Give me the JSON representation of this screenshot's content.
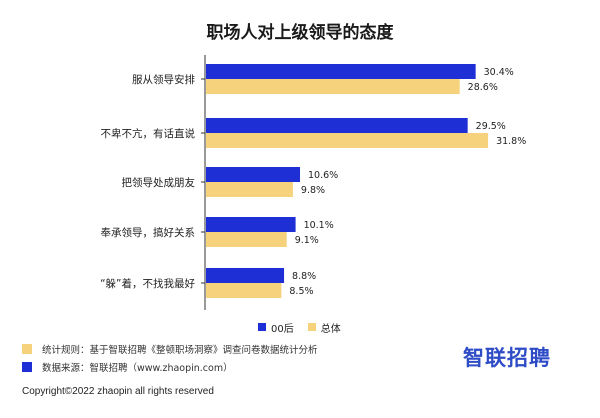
{
  "title": "职场人对上级领导的态度",
  "chart_data": {
    "type": "bar",
    "orientation": "horizontal",
    "categories": [
      "服从领导安排",
      "不卑不亢，有话直说",
      "把领导处成朋友",
      "奉承领导，搞好关系",
      "“躲”着，不找我最好"
    ],
    "series": [
      {
        "name": "00后",
        "values": [
          30.4,
          29.5,
          10.6,
          10.1,
          8.8
        ],
        "labels": [
          "30.4%",
          "29.5%",
          "10.6%",
          "10.1%",
          "8.8%"
        ],
        "color": "#1f2fd6"
      },
      {
        "name": "总体",
        "values": [
          28.6,
          31.8,
          9.8,
          9.1,
          8.5
        ],
        "labels": [
          "28.6%",
          "31.8%",
          "9.8%",
          "9.1%",
          "8.5%"
        ],
        "color": "#f7d27d"
      }
    ],
    "xlim": [
      0,
      35
    ],
    "grid": false,
    "legend": "bottom"
  },
  "legend": {
    "item1": "00后",
    "item2": "总体"
  },
  "notes": {
    "rule": "统计规则：基于智联招聘《整顿职场洞察》调查问卷数据统计分析",
    "source": "数据来源：智联招聘（www.zhaopin.com）"
  },
  "logo_text": "智联招聘",
  "copyright": "Copyright©2022 zhaopin all rights reserved",
  "colors": {
    "blue": "#1f2fd6",
    "yellow": "#f7d27d",
    "logo": "#2f4cc7"
  }
}
